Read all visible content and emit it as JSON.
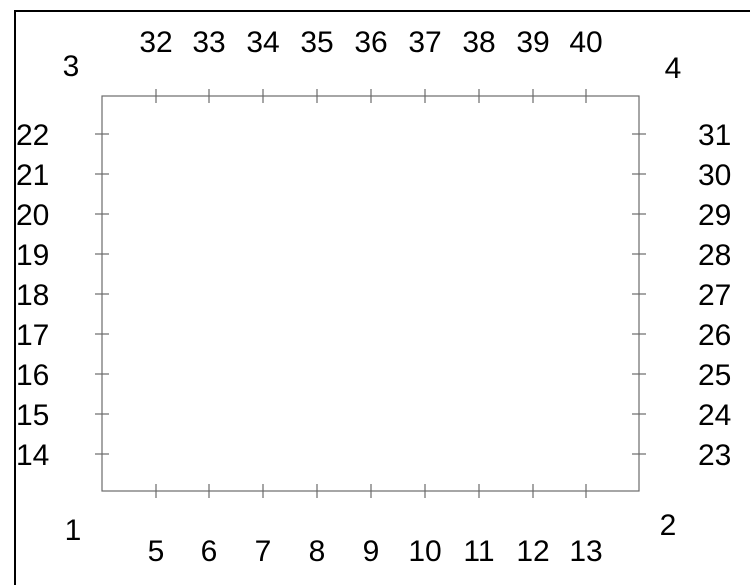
{
  "corners": {
    "bottom_left": "1",
    "bottom_right": "2",
    "top_left": "3",
    "top_right": "4"
  },
  "bottom_labels": [
    "5",
    "6",
    "7",
    "8",
    "9",
    "10",
    "11",
    "12",
    "13"
  ],
  "left_labels": [
    "14",
    "15",
    "16",
    "17",
    "18",
    "19",
    "20",
    "21",
    "22"
  ],
  "right_labels": [
    "23",
    "24",
    "25",
    "26",
    "27",
    "28",
    "29",
    "30",
    "31"
  ],
  "top_labels": [
    "32",
    "33",
    "34",
    "35",
    "36",
    "37",
    "38",
    "39",
    "40"
  ]
}
